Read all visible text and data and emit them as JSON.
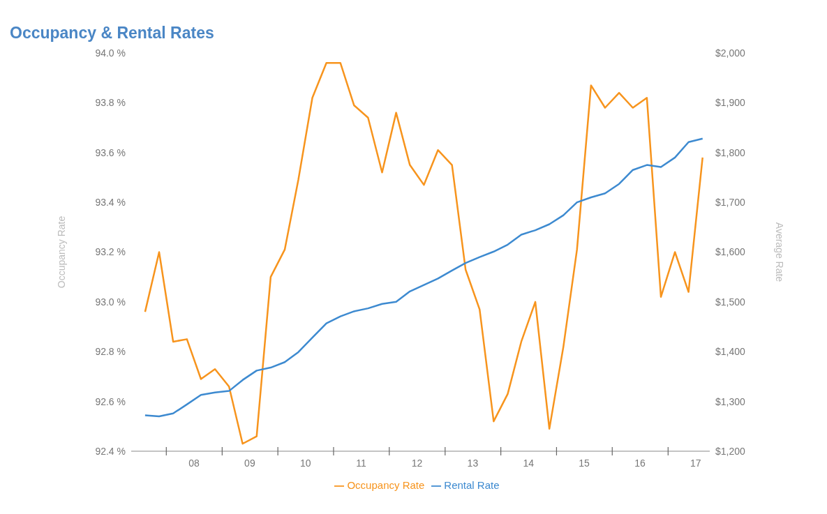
{
  "chart_data": {
    "type": "line",
    "title": "Occupancy & Rental Rates",
    "ylabel": "Occupancy Rate",
    "y2label": "Average Rate",
    "x": [
      "2007-08-15",
      "2007-11-15",
      "2008-02-15",
      "2008-05-15",
      "2008-08-15",
      "2008-11-15",
      "2009-02-15",
      "2009-05-15",
      "2009-08-15",
      "2009-11-15",
      "2010-02-15",
      "2010-05-15",
      "2010-08-15",
      "2010-11-15",
      "2011-02-15",
      "2011-05-15",
      "2011-08-15",
      "2011-11-15",
      "2012-02-15",
      "2012-05-15",
      "2012-08-15",
      "2012-11-15",
      "2013-02-15",
      "2013-05-15",
      "2013-08-15",
      "2013-11-15",
      "2014-02-15",
      "2014-05-15",
      "2014-08-15",
      "2014-11-15",
      "2015-02-15",
      "2015-05-15",
      "2015-08-15",
      "2015-11-15",
      "2016-02-15",
      "2016-05-15",
      "2016-08-15",
      "2016-11-15",
      "2017-02-15",
      "2017-05-15",
      "2017-08-15"
    ],
    "series": [
      {
        "name": "Occupancy Rate",
        "color": "#f7941d",
        "values": [
          92.96,
          93.2,
          92.84,
          92.85,
          92.69,
          92.73,
          92.66,
          92.43,
          92.46,
          93.1,
          93.21,
          93.49,
          93.82,
          93.96,
          93.96,
          93.79,
          93.74,
          93.52,
          93.76,
          93.55,
          93.47,
          93.61,
          93.55,
          93.13,
          92.97,
          92.52,
          92.63,
          92.84,
          93.0,
          92.49,
          92.82,
          93.21,
          93.87,
          93.78,
          93.84,
          93.78,
          93.82,
          93.02,
          93.2,
          93.04,
          93.58
        ]
      },
      {
        "name": "Rental Rate",
        "color": "#3d8ad0",
        "axis": "y2",
        "values": [
          1272,
          1270,
          1276,
          1294,
          1313,
          1318,
          1321,
          1343,
          1362,
          1368,
          1379,
          1399,
          1428,
          1457,
          1471,
          1481,
          1487,
          1496,
          1500,
          1521,
          1534,
          1547,
          1563,
          1578,
          1590,
          1601,
          1615,
          1635,
          1644,
          1656,
          1674,
          1700,
          1710,
          1718,
          1737,
          1765,
          1775,
          1771,
          1790,
          1821,
          1828
        ]
      }
    ],
    "xlim": [
      "2007-05-16",
      "2017-10-01"
    ],
    "xticks": [
      {
        "value": "2008-01-01",
        "label": null
      },
      {
        "value": "2008-07-01",
        "label": "08"
      },
      {
        "value": "2009-01-01",
        "label": null
      },
      {
        "value": "2009-07-01",
        "label": "09"
      },
      {
        "value": "2010-01-01",
        "label": null
      },
      {
        "value": "2010-07-01",
        "label": "10"
      },
      {
        "value": "2011-01-01",
        "label": null
      },
      {
        "value": "2011-07-01",
        "label": "11"
      },
      {
        "value": "2012-01-01",
        "label": null
      },
      {
        "value": "2012-07-01",
        "label": "12"
      },
      {
        "value": "2013-01-01",
        "label": null
      },
      {
        "value": "2013-07-01",
        "label": "13"
      },
      {
        "value": "2014-01-01",
        "label": null
      },
      {
        "value": "2014-07-01",
        "label": "14"
      },
      {
        "value": "2015-01-01",
        "label": null
      },
      {
        "value": "2015-07-01",
        "label": "15"
      },
      {
        "value": "2016-01-01",
        "label": null
      },
      {
        "value": "2016-07-01",
        "label": "16"
      },
      {
        "value": "2017-01-01",
        "label": null
      },
      {
        "value": "2017-07-01",
        "label": "17"
      }
    ],
    "ylim": [
      92.4,
      94.0
    ],
    "yticks": [
      {
        "value": 92.4,
        "label": "92.4 %"
      },
      {
        "value": 92.6,
        "label": "92.6 %"
      },
      {
        "value": 92.8,
        "label": "92.8 %"
      },
      {
        "value": 93.0,
        "label": "93.0 %"
      },
      {
        "value": 93.2,
        "label": "93.2 %"
      },
      {
        "value": 93.4,
        "label": "93.4 %"
      },
      {
        "value": 93.6,
        "label": "93.6 %"
      },
      {
        "value": 93.8,
        "label": "93.8 %"
      },
      {
        "value": 94.0,
        "label": "94.0 %"
      }
    ],
    "y2lim": [
      1200,
      2000
    ],
    "y2ticks": [
      {
        "value": 1200,
        "label": "$1,200"
      },
      {
        "value": 1300,
        "label": "$1,300"
      },
      {
        "value": 1400,
        "label": "$1,400"
      },
      {
        "value": 1500,
        "label": "$1,500"
      },
      {
        "value": 1600,
        "label": "$1,600"
      },
      {
        "value": 1700,
        "label": "$1,700"
      },
      {
        "value": 1800,
        "label": "$1,800"
      },
      {
        "value": 1900,
        "label": "$1,900"
      },
      {
        "value": 2000,
        "label": "$2,000"
      }
    ],
    "grid": false,
    "legend": "bottom",
    "marker": "none",
    "line_style": "solid"
  }
}
